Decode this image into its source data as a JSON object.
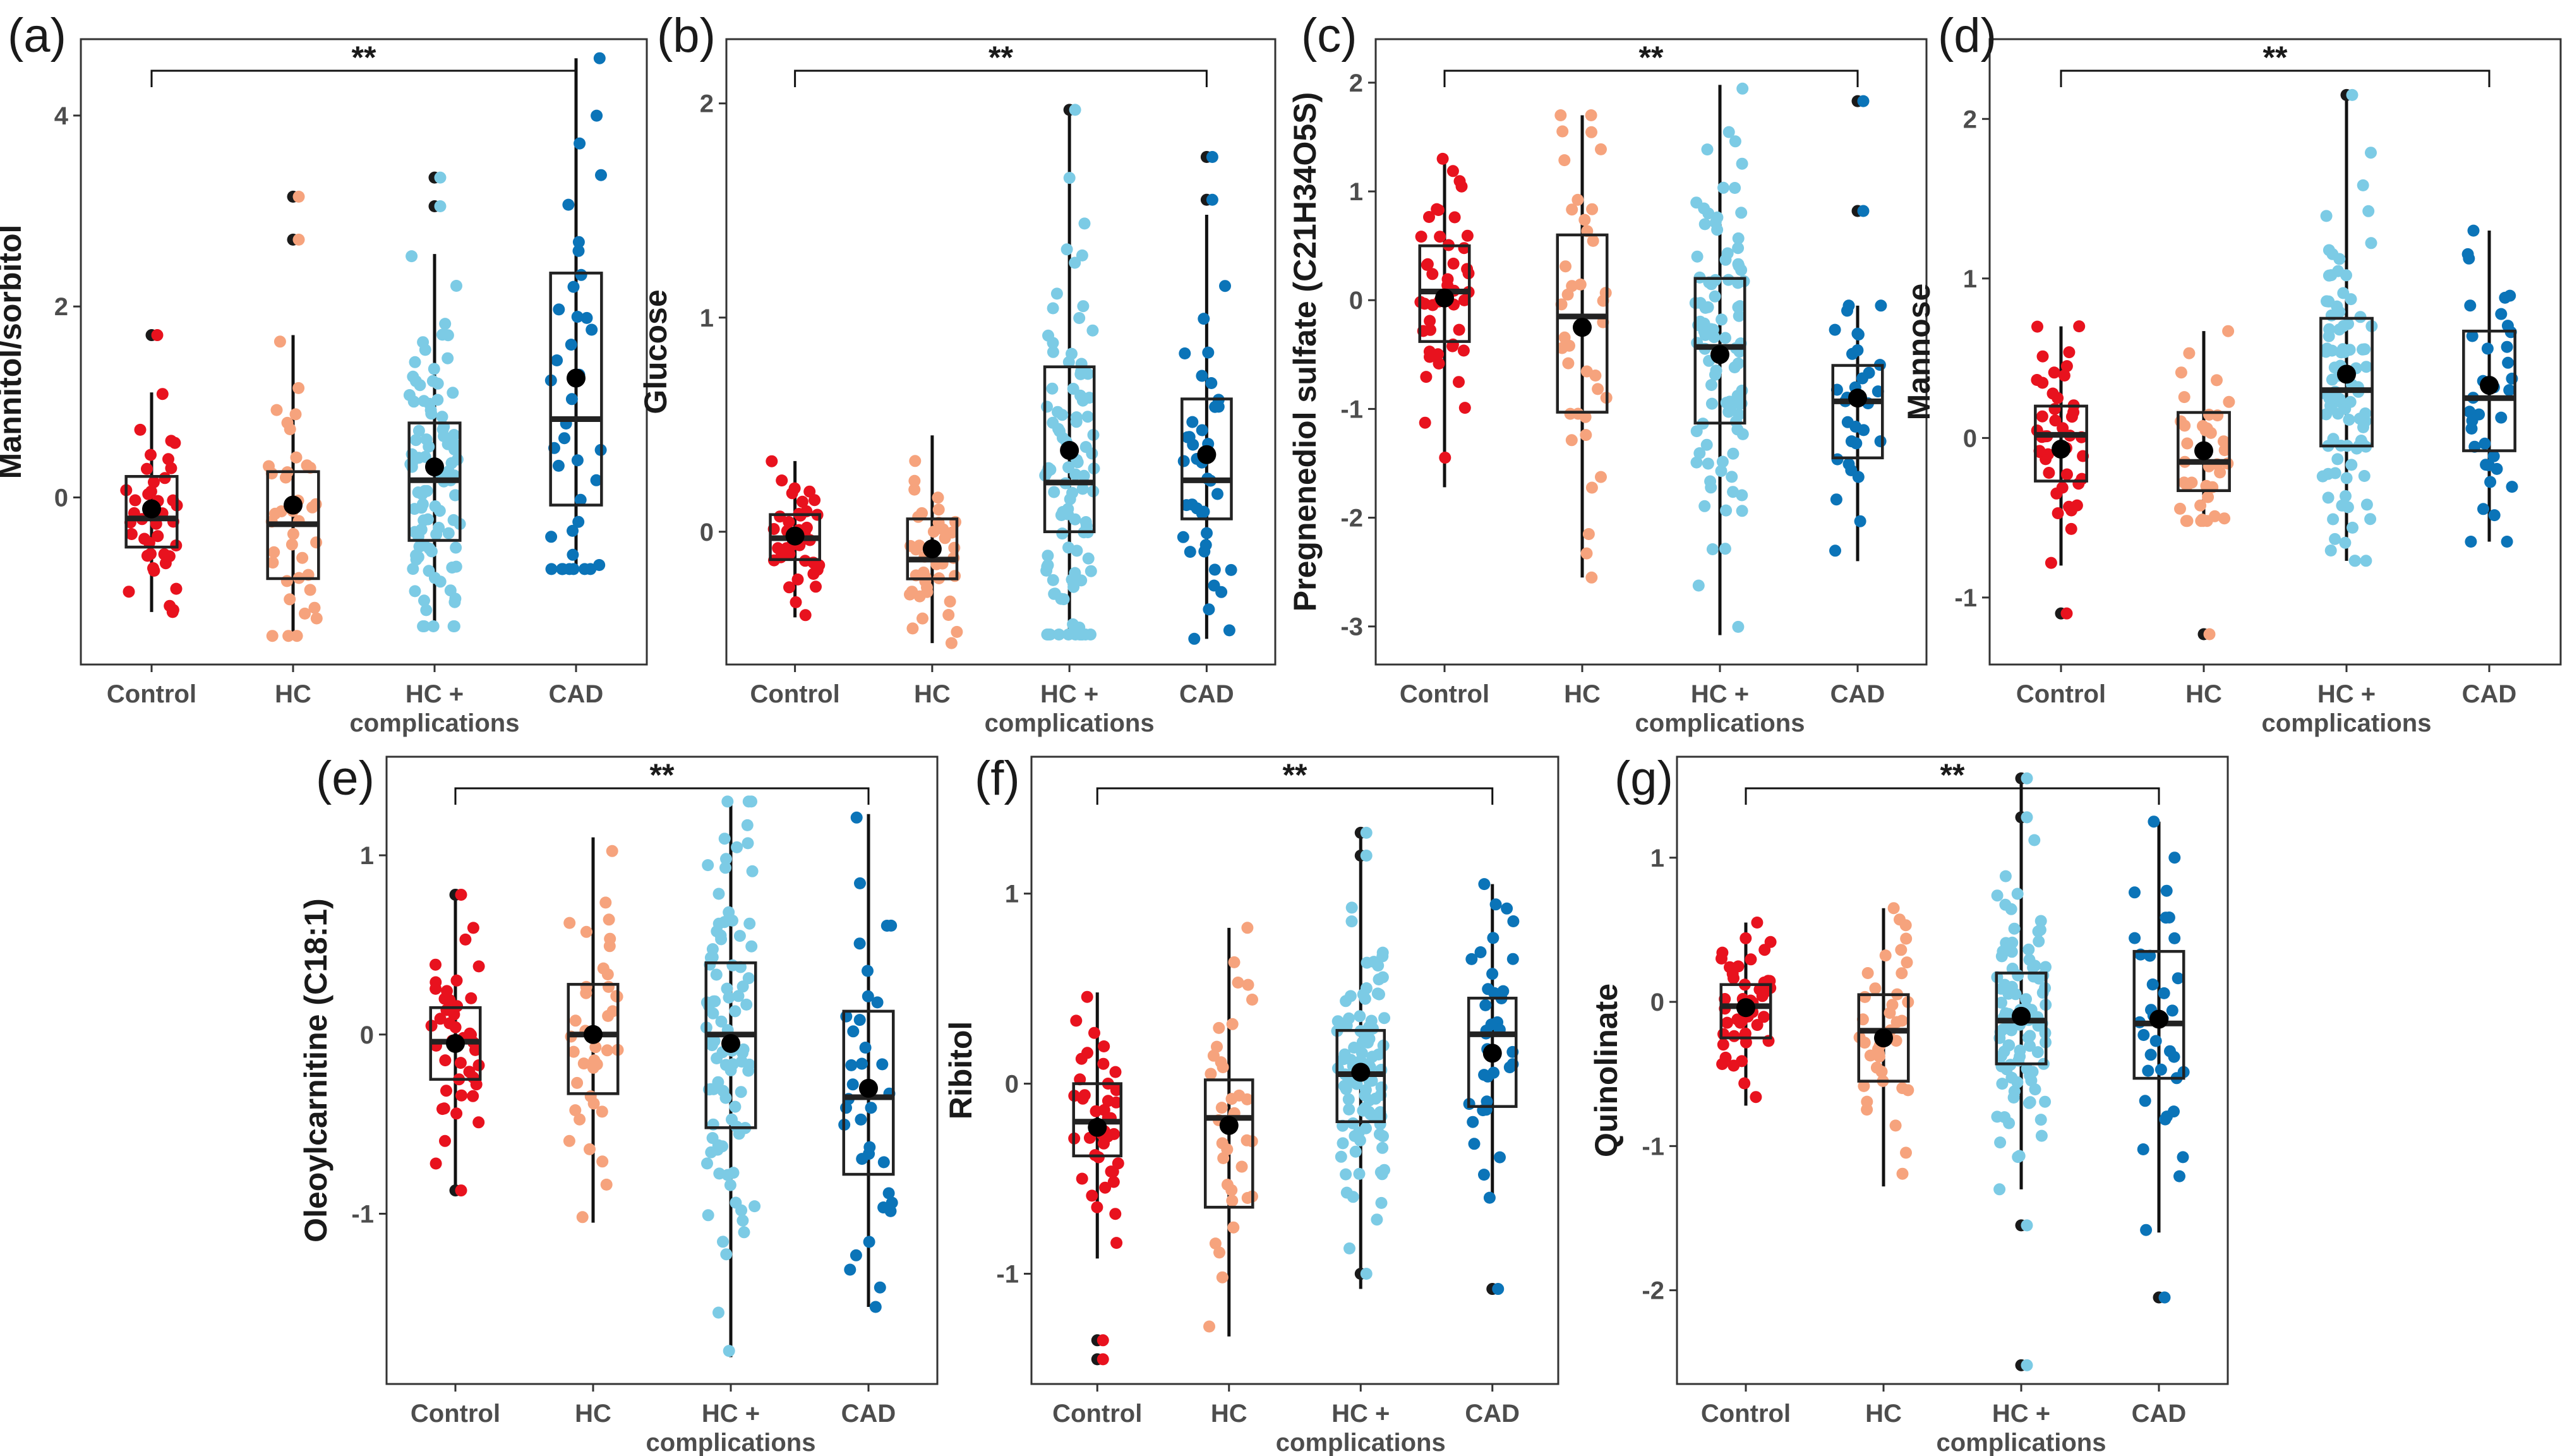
{
  "colors": {
    "Control": "#e8121e",
    "HC": "#f6a37d",
    "HC + complications": "#7ccbe5",
    "CAD": "#0b74b8",
    "outlier": "#1a1a1a",
    "mean": "#000000"
  },
  "chart_data": [
    {
      "type": "box",
      "panel": "(a)",
      "title": "",
      "xlabel": "",
      "ylabel": "Mannitol/sorbitol",
      "categories": [
        "Control",
        "HC",
        "HC +\ncomplications",
        "CAD"
      ],
      "ylim": [
        -1.75,
        4.8
      ],
      "yticks": [
        0,
        2,
        4
      ],
      "significance": {
        "label": "**",
        "from": "Control",
        "to": "CAD"
      },
      "boxes": [
        {
          "q1": -0.52,
          "median": -0.22,
          "q3": 0.22,
          "whisker_low": -1.2,
          "whisker_high": 1.1,
          "mean": -0.12,
          "n": 40,
          "outliers": [
            1.7
          ]
        },
        {
          "q1": -0.85,
          "median": -0.28,
          "q3": 0.27,
          "whisker_low": -1.45,
          "whisker_high": 1.7,
          "mean": -0.08,
          "n": 38,
          "outliers": [
            2.7,
            3.15
          ]
        },
        {
          "q1": -0.45,
          "median": 0.18,
          "q3": 0.78,
          "whisker_low": -1.35,
          "whisker_high": 2.55,
          "mean": 0.32,
          "n": 95,
          "outliers": [
            3.05,
            3.35
          ]
        },
        {
          "q1": -0.08,
          "median": 0.82,
          "q3": 2.35,
          "whisker_low": -0.75,
          "whisker_high": 4.6,
          "mean": 1.25,
          "n": 38,
          "outliers": []
        }
      ]
    },
    {
      "type": "box",
      "panel": "(b)",
      "title": "",
      "xlabel": "",
      "ylabel": "Glucose",
      "categories": [
        "Control",
        "HC",
        "HC +\ncomplications",
        "CAD"
      ],
      "ylim": [
        -0.62,
        2.3
      ],
      "yticks": [
        0,
        1,
        2
      ],
      "significance": {
        "label": "**",
        "from": "Control",
        "to": "CAD"
      },
      "boxes": [
        {
          "q1": -0.13,
          "median": -0.03,
          "q3": 0.08,
          "whisker_low": -0.4,
          "whisker_high": 0.33,
          "mean": -0.02,
          "n": 40,
          "outliers": []
        },
        {
          "q1": -0.22,
          "median": -0.13,
          "q3": 0.06,
          "whisker_low": -0.52,
          "whisker_high": 0.45,
          "mean": -0.08,
          "n": 38,
          "outliers": []
        },
        {
          "q1": 0.0,
          "median": 0.23,
          "q3": 0.77,
          "whisker_low": -0.48,
          "whisker_high": 1.97,
          "mean": 0.38,
          "n": 95,
          "outliers": [
            1.97
          ]
        },
        {
          "q1": 0.06,
          "median": 0.24,
          "q3": 0.62,
          "whisker_low": -0.5,
          "whisker_high": 1.48,
          "mean": 0.36,
          "n": 38,
          "outliers": [
            1.55,
            1.75
          ]
        }
      ]
    },
    {
      "type": "box",
      "panel": "(c)",
      "title": "",
      "xlabel": "",
      "ylabel": "Pregnenediol sulfate (C21H34O5S)",
      "categories": [
        "Control",
        "HC",
        "HC +\ncomplications",
        "CAD"
      ],
      "ylim": [
        -3.35,
        2.4
      ],
      "yticks": [
        -3,
        -2,
        -1,
        0,
        1,
        2
      ],
      "significance": {
        "label": "**",
        "from": "Control",
        "to": "CAD"
      },
      "boxes": [
        {
          "q1": -0.38,
          "median": 0.08,
          "q3": 0.5,
          "whisker_low": -1.72,
          "whisker_high": 1.3,
          "mean": 0.02,
          "n": 45,
          "outliers": []
        },
        {
          "q1": -1.03,
          "median": -0.15,
          "q3": 0.6,
          "whisker_low": -2.55,
          "whisker_high": 1.7,
          "mean": -0.25,
          "n": 38,
          "outliers": []
        },
        {
          "q1": -1.13,
          "median": -0.43,
          "q3": 0.2,
          "whisker_low": -3.08,
          "whisker_high": 1.98,
          "mean": -0.5,
          "n": 95,
          "outliers": []
        },
        {
          "q1": -1.45,
          "median": -0.93,
          "q3": -0.6,
          "whisker_low": -2.4,
          "whisker_high": -0.05,
          "mean": -0.9,
          "n": 30,
          "outliers": [
            1.83,
            0.82
          ]
        }
      ]
    },
    {
      "type": "box",
      "panel": "(d)",
      "title": "",
      "xlabel": "",
      "ylabel": "Mannose",
      "categories": [
        "Control",
        "HC",
        "HC +\ncomplications",
        "CAD"
      ],
      "ylim": [
        -1.42,
        2.5
      ],
      "yticks": [
        -1,
        0,
        1,
        2
      ],
      "significance": {
        "label": "**",
        "from": "Control",
        "to": "CAD"
      },
      "boxes": [
        {
          "q1": -0.27,
          "median": 0.02,
          "q3": 0.2,
          "whisker_low": -0.8,
          "whisker_high": 0.7,
          "mean": -0.07,
          "n": 42,
          "outliers": [
            -1.1
          ]
        },
        {
          "q1": -0.33,
          "median": -0.15,
          "q3": 0.16,
          "whisker_low": -0.52,
          "whisker_high": 0.67,
          "mean": -0.08,
          "n": 38,
          "outliers": [
            -1.23
          ]
        },
        {
          "q1": -0.05,
          "median": 0.3,
          "q3": 0.75,
          "whisker_low": -0.77,
          "whisker_high": 2.15,
          "mean": 0.4,
          "n": 90,
          "outliers": [
            2.15
          ]
        },
        {
          "q1": -0.08,
          "median": 0.25,
          "q3": 0.67,
          "whisker_low": -0.65,
          "whisker_high": 1.3,
          "mean": 0.33,
          "n": 35,
          "outliers": []
        }
      ]
    },
    {
      "type": "box",
      "panel": "(e)",
      "title": "",
      "xlabel": "",
      "ylabel": "Oleoylcarnitine (C18:1)",
      "categories": [
        "Control",
        "HC",
        "HC +\ncomplications",
        "CAD"
      ],
      "ylim": [
        -1.95,
        1.55
      ],
      "yticks": [
        -1,
        0,
        1
      ],
      "significance": {
        "label": "**",
        "from": "Control",
        "to": "CAD"
      },
      "boxes": [
        {
          "q1": -0.25,
          "median": -0.04,
          "q3": 0.15,
          "whisker_low": -0.85,
          "whisker_high": 0.78,
          "mean": -0.05,
          "n": 42,
          "outliers": [
            -0.87,
            0.78
          ]
        },
        {
          "q1": -0.33,
          "median": 0.0,
          "q3": 0.28,
          "whisker_low": -1.05,
          "whisker_high": 1.1,
          "mean": 0.0,
          "n": 38,
          "outliers": []
        },
        {
          "q1": -0.52,
          "median": 0.0,
          "q3": 0.4,
          "whisker_low": -1.8,
          "whisker_high": 1.3,
          "mean": -0.05,
          "n": 95,
          "outliers": []
        },
        {
          "q1": -0.78,
          "median": -0.35,
          "q3": 0.13,
          "whisker_low": -1.52,
          "whisker_high": 1.23,
          "mean": -0.3,
          "n": 35,
          "outliers": []
        }
      ]
    },
    {
      "type": "box",
      "panel": "(f)",
      "title": "",
      "xlabel": "",
      "ylabel": "Ribitol",
      "categories": [
        "Control",
        "HC",
        "HC +\ncomplications",
        "CAD"
      ],
      "ylim": [
        -1.58,
        1.72
      ],
      "yticks": [
        -1,
        0,
        1
      ],
      "significance": {
        "label": "**",
        "from": "Control",
        "to": "CAD"
      },
      "boxes": [
        {
          "q1": -0.38,
          "median": -0.2,
          "q3": 0.0,
          "whisker_low": -0.92,
          "whisker_high": 0.48,
          "mean": -0.23,
          "n": 40,
          "outliers": [
            -1.35,
            -1.45
          ]
        },
        {
          "q1": -0.65,
          "median": -0.18,
          "q3": 0.02,
          "whisker_low": -1.33,
          "whisker_high": 0.82,
          "mean": -0.22,
          "n": 35,
          "outliers": []
        },
        {
          "q1": -0.2,
          "median": 0.05,
          "q3": 0.28,
          "whisker_low": -1.08,
          "whisker_high": 1.32,
          "mean": 0.06,
          "n": 95,
          "outliers": [
            1.2,
            1.32,
            -1.0
          ]
        },
        {
          "q1": -0.12,
          "median": 0.26,
          "q3": 0.45,
          "whisker_low": -0.6,
          "whisker_high": 1.05,
          "mean": 0.16,
          "n": 35,
          "outliers": [
            -1.08
          ]
        }
      ]
    },
    {
      "type": "box",
      "panel": "(g)",
      "title": "",
      "xlabel": "",
      "ylabel": "Quinolinate",
      "categories": [
        "Control",
        "HC",
        "HC +\ncomplications",
        "CAD"
      ],
      "ylim": [
        -2.65,
        1.7
      ],
      "yticks": [
        -2,
        -1,
        0,
        1
      ],
      "significance": {
        "label": "**",
        "from": "Control",
        "to": "CAD"
      },
      "boxes": [
        {
          "q1": -0.25,
          "median": -0.03,
          "q3": 0.12,
          "whisker_low": -0.72,
          "whisker_high": 0.55,
          "mean": -0.04,
          "n": 45,
          "outliers": []
        },
        {
          "q1": -0.55,
          "median": -0.2,
          "q3": 0.05,
          "whisker_low": -1.28,
          "whisker_high": 0.65,
          "mean": -0.25,
          "n": 38,
          "outliers": []
        },
        {
          "q1": -0.43,
          "median": -0.13,
          "q3": 0.2,
          "whisker_low": -1.3,
          "whisker_high": 1.55,
          "mean": -0.1,
          "n": 95,
          "outliers": [
            1.28,
            1.55,
            -1.55,
            -2.52
          ]
        },
        {
          "q1": -0.53,
          "median": -0.15,
          "q3": 0.35,
          "whisker_low": -1.6,
          "whisker_high": 1.25,
          "mean": -0.12,
          "n": 35,
          "outliers": [
            -2.05
          ]
        }
      ]
    }
  ]
}
